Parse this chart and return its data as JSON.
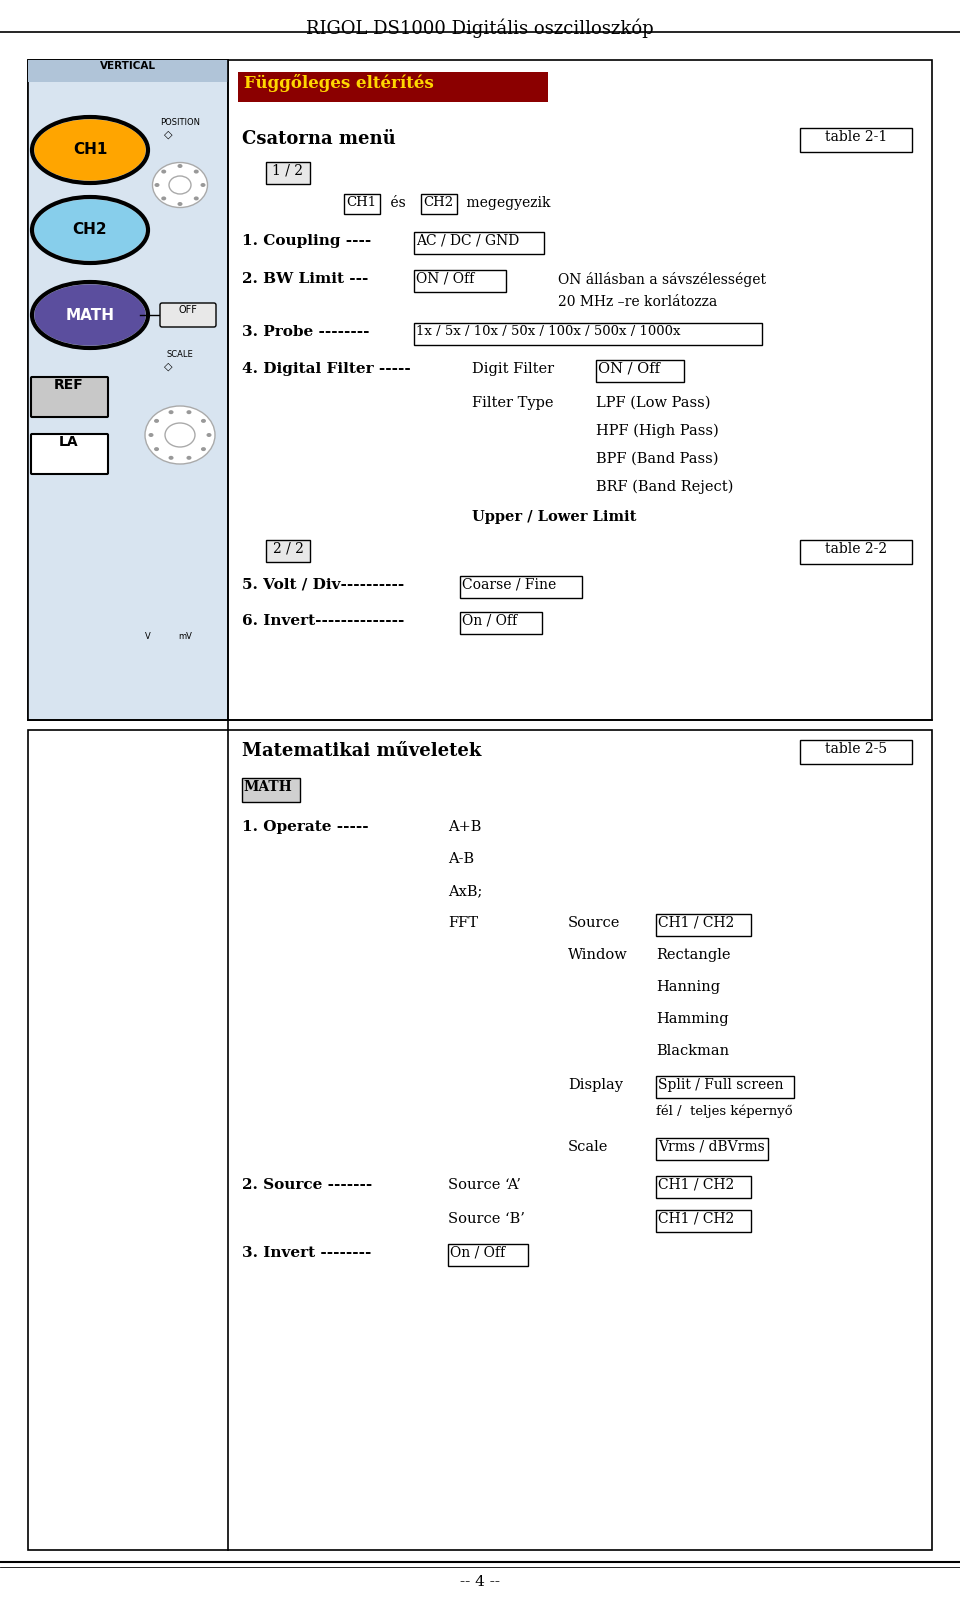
{
  "page_title": "RIGOL DS1000 Digitális oszcilloszkóp",
  "footer": "-- 4 --",
  "bg_color": "#ffffff",
  "text_color": "#000000",
  "header_bg": "#8B0000",
  "header_text_color": "#FFD700",
  "header_text": "Függőleges eltérítés",
  "section1_title": "Csatorna menü",
  "table_ref1": "table 2-1",
  "table_ref2": "table 2-2",
  "table_ref3": "table 2-5"
}
